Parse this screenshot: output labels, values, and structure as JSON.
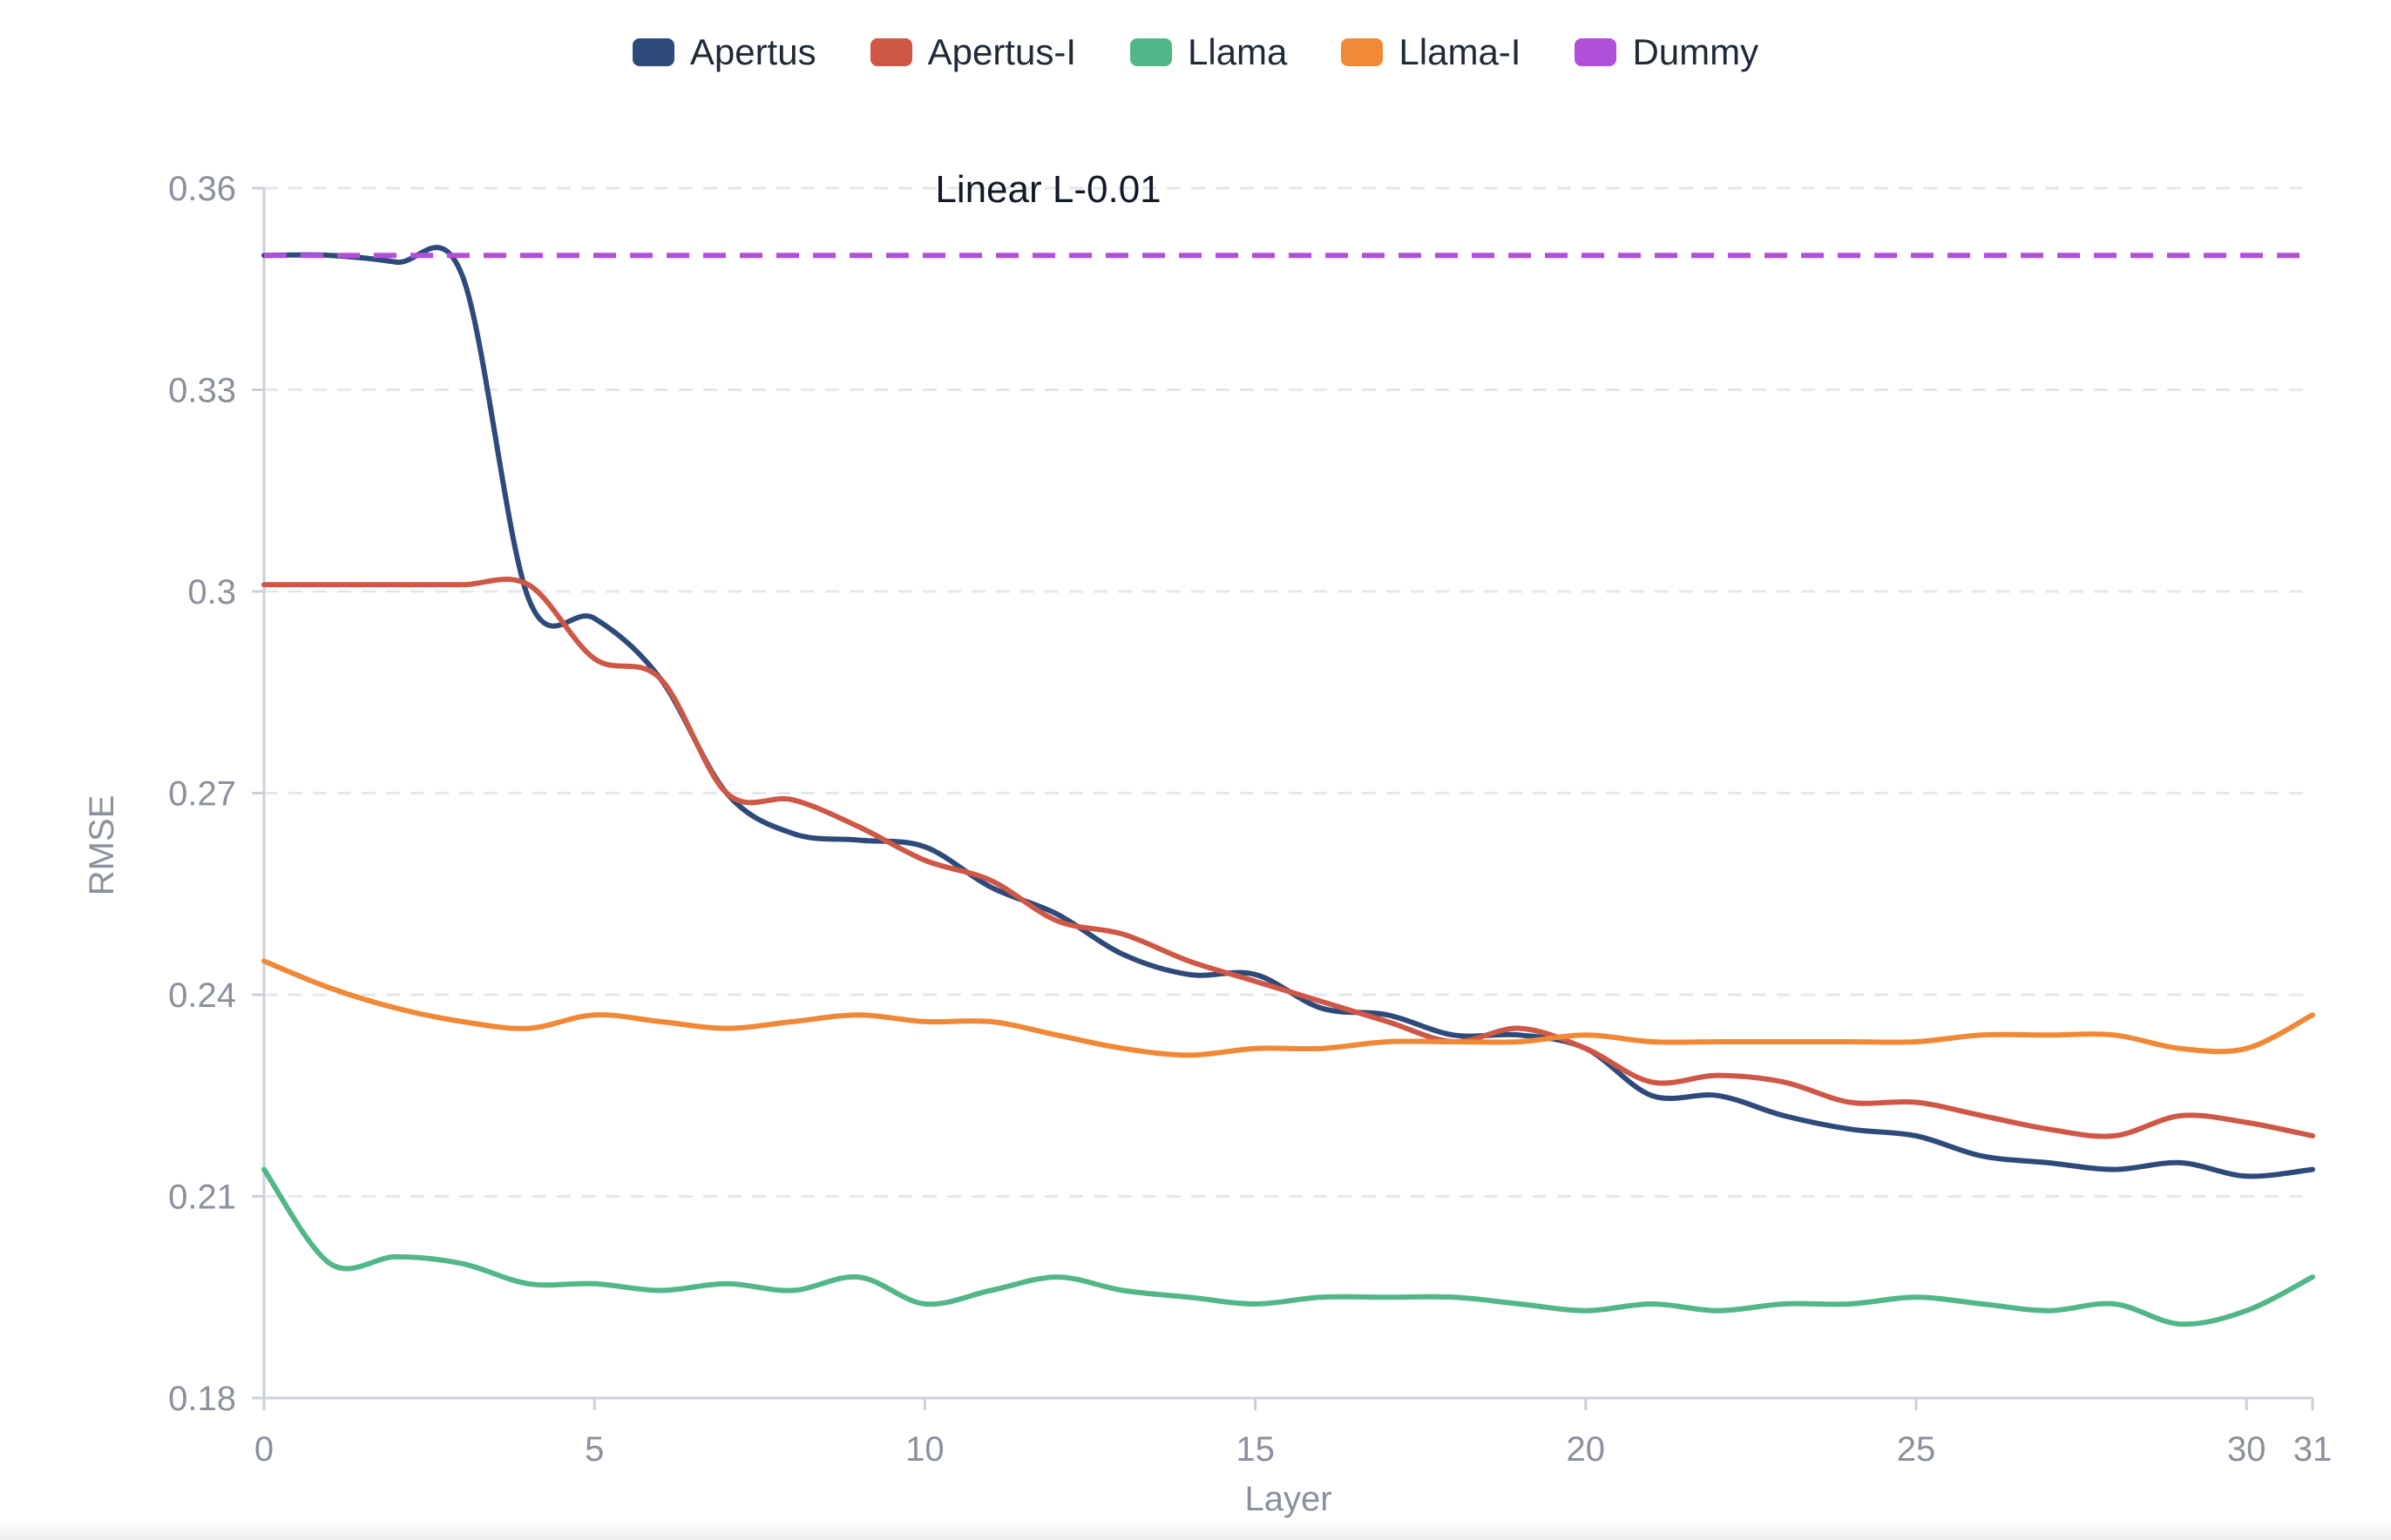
{
  "chart_data": {
    "type": "line",
    "title": "Linear L-0.01",
    "xlabel": "Layer",
    "ylabel": "RMSE",
    "xlim": [
      0,
      31
    ],
    "ylim": [
      0.18,
      0.36
    ],
    "x_ticks": [
      0,
      5,
      10,
      15,
      20,
      25,
      30,
      31
    ],
    "y_ticks": [
      0.18,
      0.21,
      0.24,
      0.27,
      0.3,
      0.33,
      0.36
    ],
    "y_tick_labels": [
      "0.18",
      "0.21",
      "0.24",
      "0.27",
      "0.3",
      "0.33",
      "0.36"
    ],
    "grid": "horizontal dashed",
    "legend_position": "top-center",
    "x": [
      0,
      1,
      2,
      3,
      4,
      5,
      6,
      7,
      8,
      9,
      10,
      11,
      12,
      13,
      14,
      15,
      16,
      17,
      18,
      19,
      20,
      21,
      22,
      23,
      24,
      25,
      26,
      27,
      28,
      29,
      30,
      31
    ],
    "series": [
      {
        "name": "Apertus",
        "color": "#2e4a7a",
        "style": "solid",
        "values": [
          0.35,
          0.35,
          0.349,
          0.347,
          0.299,
          0.296,
          0.287,
          0.27,
          0.264,
          0.263,
          0.262,
          0.256,
          0.252,
          0.246,
          0.243,
          0.243,
          0.238,
          0.237,
          0.234,
          0.234,
          0.232,
          0.225,
          0.225,
          0.222,
          0.22,
          0.219,
          0.216,
          0.215,
          0.214,
          0.215,
          0.213,
          0.214
        ]
      },
      {
        "name": "Apertus-I",
        "color": "#cf5746",
        "style": "solid",
        "values": [
          0.301,
          0.301,
          0.301,
          0.301,
          0.301,
          0.29,
          0.287,
          0.27,
          0.269,
          0.265,
          0.26,
          0.257,
          0.251,
          0.249,
          0.245,
          0.242,
          0.239,
          0.236,
          0.233,
          0.235,
          0.232,
          0.227,
          0.228,
          0.227,
          0.224,
          0.224,
          0.222,
          0.22,
          0.219,
          0.222,
          0.221,
          0.219
        ]
      },
      {
        "name": "Llama",
        "color": "#52b788",
        "style": "solid",
        "values": [
          0.214,
          0.2,
          0.201,
          0.2,
          0.197,
          0.197,
          0.196,
          0.197,
          0.196,
          0.198,
          0.194,
          0.196,
          0.198,
          0.196,
          0.195,
          0.194,
          0.195,
          0.195,
          0.195,
          0.194,
          0.193,
          0.194,
          0.193,
          0.194,
          0.194,
          0.195,
          0.194,
          0.193,
          0.194,
          0.191,
          0.193,
          0.198
        ]
      },
      {
        "name": "Llama-I",
        "color": "#f08836",
        "style": "solid",
        "values": [
          0.245,
          0.241,
          0.238,
          0.236,
          0.235,
          0.237,
          0.236,
          0.235,
          0.236,
          0.237,
          0.236,
          0.236,
          0.234,
          0.232,
          0.231,
          0.232,
          0.232,
          0.233,
          0.233,
          0.233,
          0.234,
          0.233,
          0.233,
          0.233,
          0.233,
          0.233,
          0.234,
          0.234,
          0.234,
          0.232,
          0.232,
          0.237
        ]
      },
      {
        "name": "Dummy",
        "color": "#b24fd8",
        "style": "dashed",
        "values": [
          0.35,
          0.35,
          0.35,
          0.35,
          0.35,
          0.35,
          0.35,
          0.35,
          0.35,
          0.35,
          0.35,
          0.35,
          0.35,
          0.35,
          0.35,
          0.35,
          0.35,
          0.35,
          0.35,
          0.35,
          0.35,
          0.35,
          0.35,
          0.35,
          0.35,
          0.35,
          0.35,
          0.35,
          0.35,
          0.35,
          0.35,
          0.35
        ]
      }
    ]
  }
}
